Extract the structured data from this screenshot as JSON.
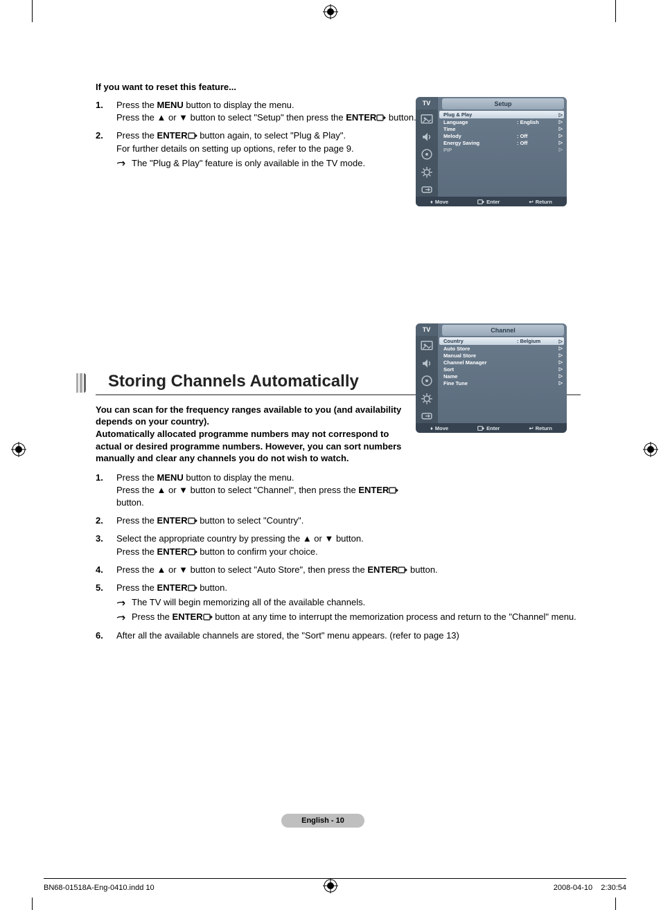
{
  "reset_heading": "If you want to reset this feature...",
  "reset_steps": {
    "1": {
      "num": "1.",
      "line1a": "Press the ",
      "menu": "MENU",
      "line1b": " button to display the menu.",
      "line2a": "Press the ▲ or ▼ button to select \"Setup\" then press the ",
      "enter": "ENTER",
      "line2b": " button."
    },
    "2": {
      "num": "2.",
      "line1a": "Press the ",
      "enter": "ENTER",
      "line1b": " button again, to select \"Plug & Play\".",
      "line2": "For further details on setting up options, refer to the ",
      "pageref": "page 9",
      "line2end": ".",
      "note": "The \"Plug & Play\" feature is only available in the TV mode."
    }
  },
  "section_title": "Storing Channels Automatically",
  "intro": "You can scan for the frequency ranges available to you (and availability depends on your country).\nAutomatically allocated programme numbers may not correspond to actual or desired programme numbers. However, you can sort numbers manually and clear any channels you do not wish to watch.",
  "store_steps": {
    "1": {
      "num": "1.",
      "a": "Press the ",
      "menu": "MENU",
      "b": " button to display the menu.",
      "c": "Press the ▲ or ▼ button to select \"Channel\", then press the ",
      "enter": "ENTER",
      "d": " button."
    },
    "2": {
      "num": "2.",
      "a": "Press the ",
      "enter": "ENTER",
      "b": " button to select \"Country\"."
    },
    "3": {
      "num": "3.",
      "a": "Select the appropriate country by pressing the ▲ or ▼ button.",
      "b": "Press the ",
      "enter": "ENTER",
      "c": " button to confirm your choice."
    },
    "4": {
      "num": "4.",
      "a": "Press the ▲ or ▼ button to select \"Auto Store\", then press the ",
      "enter": "ENTER",
      "b": " button."
    },
    "5": {
      "num": "5.",
      "a": "Press the ",
      "enter": "ENTER",
      "b": " button.",
      "note1": "The TV will begin memorizing all of the available channels.",
      "note2a": "Press the ",
      "enter2": "ENTER",
      "note2b": " button at any time to interrupt the memorization process and return to the \"Channel\" menu."
    },
    "6": {
      "num": "6.",
      "a": "After all the available channels are stored, the \"Sort\" menu appears. (refer to ",
      "pageref": "page 13",
      "b": ")"
    }
  },
  "osd1": {
    "tv": "TV",
    "title": "Setup",
    "rows": [
      {
        "label": "Plug & Play",
        "val": "",
        "sel": true
      },
      {
        "label": "Language",
        "val": ": English"
      },
      {
        "label": "Time",
        "val": ""
      },
      {
        "label": "Melody",
        "val": ": Off"
      },
      {
        "label": "Energy Saving",
        "val": ": Off"
      },
      {
        "label": "PIP",
        "val": "",
        "dim": true
      }
    ],
    "footer": {
      "move": "Move",
      "enter": "Enter",
      "return": "Return"
    }
  },
  "osd2": {
    "tv": "TV",
    "title": "Channel",
    "rows": [
      {
        "label": "Country",
        "val": ": Belgium",
        "sel": true
      },
      {
        "label": "Auto Store",
        "val": ""
      },
      {
        "label": "Manual Store",
        "val": ""
      },
      {
        "label": "Channel Manager",
        "val": ""
      },
      {
        "label": "Sort",
        "val": ""
      },
      {
        "label": "Name",
        "val": ""
      },
      {
        "label": "Fine Tune",
        "val": ""
      }
    ],
    "footer": {
      "move": "Move",
      "enter": "Enter",
      "return": "Return"
    }
  },
  "page_badge": "English - 10",
  "footer_left": "BN68-01518A-Eng-0410.indd   10",
  "footer_right": "2008-04-10      2:30:54",
  "colors": {
    "osd_bg_top": "#6a7b8c",
    "osd_bg_bot": "#5a6b7c",
    "osd_title_top": "#b8c4d0",
    "osd_title_bot": "#98a8b8",
    "sel_top": "#e8eef4",
    "sel_bot": "#c8d4e0",
    "badge_bg": "#bfbfbf",
    "rule": "#888888"
  },
  "glyphs": {
    "up": "▲",
    "down": "▼",
    "updown": "♦",
    "return": "↩"
  }
}
